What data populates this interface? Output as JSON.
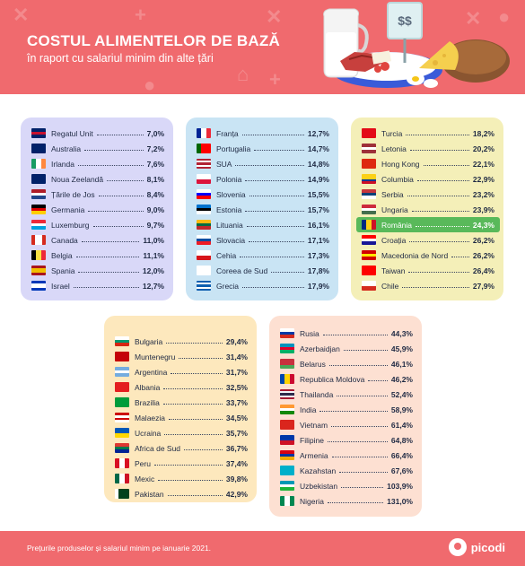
{
  "header": {
    "title": "COSTUL ALIMENTELOR DE BAZĂ",
    "subtitle": "în raport cu salariul minim din alte țări",
    "price_sign": "$$"
  },
  "groups": [
    {
      "items": [
        {
          "name": "Regatul Unit",
          "value": "7,0%",
          "flag": "gb"
        },
        {
          "name": "Australia",
          "value": "7,2%",
          "flag": "au"
        },
        {
          "name": "Irlanda",
          "value": "7,6%",
          "flag": "ie"
        },
        {
          "name": "Noua Zeelandă",
          "value": "8,1%",
          "flag": "nz"
        },
        {
          "name": "Țările de Jos",
          "value": "8,4%",
          "flag": "nl"
        },
        {
          "name": "Germania",
          "value": "9,0%",
          "flag": "de"
        },
        {
          "name": "Luxemburg",
          "value": "9,7%",
          "flag": "lu"
        },
        {
          "name": "Canada",
          "value": "11,0%",
          "flag": "ca"
        },
        {
          "name": "Belgia",
          "value": "11,1%",
          "flag": "be"
        },
        {
          "name": "Spania",
          "value": "12,0%",
          "flag": "es"
        },
        {
          "name": "Israel",
          "value": "12,7%",
          "flag": "il"
        }
      ]
    },
    {
      "items": [
        {
          "name": "Franța",
          "value": "12,7%",
          "flag": "fr"
        },
        {
          "name": "Portugalia",
          "value": "14,7%",
          "flag": "pt"
        },
        {
          "name": "SUA",
          "value": "14,8%",
          "flag": "us"
        },
        {
          "name": "Polonia",
          "value": "14,9%",
          "flag": "pl"
        },
        {
          "name": "Slovenia",
          "value": "15,5%",
          "flag": "si"
        },
        {
          "name": "Estonia",
          "value": "15,7%",
          "flag": "ee"
        },
        {
          "name": "Lituania",
          "value": "16,1%",
          "flag": "lt"
        },
        {
          "name": "Slovacia",
          "value": "17,1%",
          "flag": "sk"
        },
        {
          "name": "Cehia",
          "value": "17,3%",
          "flag": "cz"
        },
        {
          "name": "Coreea de Sud",
          "value": "17,8%",
          "flag": "kr"
        },
        {
          "name": "Grecia",
          "value": "17,9%",
          "flag": "gr"
        }
      ]
    },
    {
      "items": [
        {
          "name": "Turcia",
          "value": "18,2%",
          "flag": "tr"
        },
        {
          "name": "Letonia",
          "value": "20,2%",
          "flag": "lv"
        },
        {
          "name": "Hong Kong",
          "value": "22,1%",
          "flag": "hk"
        },
        {
          "name": "Columbia",
          "value": "22,9%",
          "flag": "co"
        },
        {
          "name": "Serbia",
          "value": "23,2%",
          "flag": "rs"
        },
        {
          "name": "Ungaria",
          "value": "23,9%",
          "flag": "hu"
        },
        {
          "name": "România",
          "value": "24,3%",
          "flag": "ro",
          "highlight": true
        },
        {
          "name": "Croația",
          "value": "26,2%",
          "flag": "hr"
        },
        {
          "name": "Macedonia de Nord",
          "value": "26,2%",
          "flag": "mk"
        },
        {
          "name": "Taiwan",
          "value": "26,4%",
          "flag": "tw"
        },
        {
          "name": "Chile",
          "value": "27,9%",
          "flag": "cl"
        }
      ]
    },
    {
      "items": [
        {
          "name": "Bulgaria",
          "value": "29,4%",
          "flag": "bg"
        },
        {
          "name": "Muntenegru",
          "value": "31,4%",
          "flag": "me"
        },
        {
          "name": "Argentina",
          "value": "31,7%",
          "flag": "ar"
        },
        {
          "name": "Albania",
          "value": "32,5%",
          "flag": "al"
        },
        {
          "name": "Brazilia",
          "value": "33,7%",
          "flag": "br"
        },
        {
          "name": "Malaezia",
          "value": "34,5%",
          "flag": "my"
        },
        {
          "name": "Ucraina",
          "value": "35,7%",
          "flag": "ua"
        },
        {
          "name": "Africa de Sud",
          "value": "36,7%",
          "flag": "za"
        },
        {
          "name": "Peru",
          "value": "37,4%",
          "flag": "pe"
        },
        {
          "name": "Mexic",
          "value": "39,8%",
          "flag": "mx"
        },
        {
          "name": "Pakistan",
          "value": "42,9%",
          "flag": "pk"
        }
      ]
    },
    {
      "items": [
        {
          "name": "Rusia",
          "value": "44,3%",
          "flag": "ru"
        },
        {
          "name": "Azerbaidjan",
          "value": "45,9%",
          "flag": "az"
        },
        {
          "name": "Belarus",
          "value": "46,1%",
          "flag": "by"
        },
        {
          "name": "Republica Moldova",
          "value": "46,2%",
          "flag": "md"
        },
        {
          "name": "Thailanda",
          "value": "52,4%",
          "flag": "th"
        },
        {
          "name": "India",
          "value": "58,9%",
          "flag": "in"
        },
        {
          "name": "Vietnam",
          "value": "61,4%",
          "flag": "vn"
        },
        {
          "name": "Filipine",
          "value": "64,8%",
          "flag": "ph"
        },
        {
          "name": "Armenia",
          "value": "66,4%",
          "flag": "am"
        },
        {
          "name": "Kazahstan",
          "value": "67,6%",
          "flag": "kz"
        },
        {
          "name": "Uzbekistan",
          "value": "103,9%",
          "flag": "uz"
        },
        {
          "name": "Nigeria",
          "value": "131,0%",
          "flag": "ng"
        }
      ]
    }
  ],
  "footer": {
    "note": "Prețurile produselor și salariul minim pe ianuarie 2021.",
    "brand": "picodi"
  }
}
